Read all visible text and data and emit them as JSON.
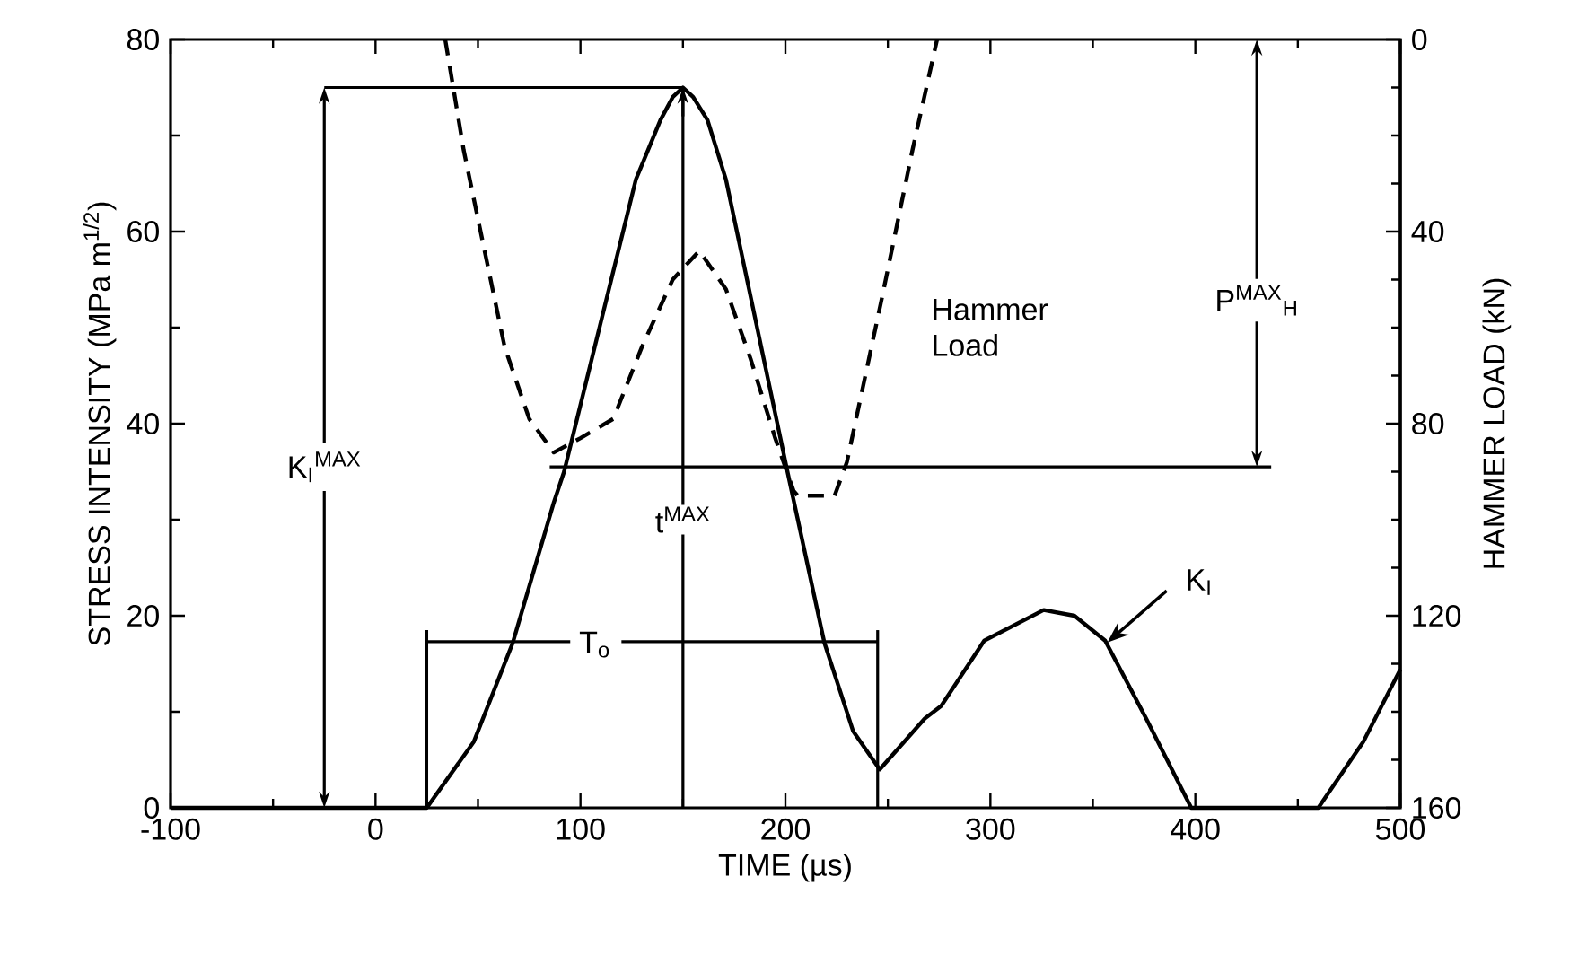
{
  "chart_data": {
    "type": "line",
    "xlabel": "TIME (µs)",
    "ylabel": "STRESS INTENSITY (MPa m$^{1/2}$)",
    "y2label": "HAMMER LOAD (kN)",
    "xlim": [
      -100,
      500
    ],
    "xticks": [
      -100,
      0,
      100,
      200,
      300,
      400,
      500
    ],
    "ylim": [
      0,
      80
    ],
    "yticks": [
      0,
      20,
      40,
      60,
      80
    ],
    "y2lim": [
      160,
      0
    ],
    "y2ticks": [
      0,
      40,
      80,
      120,
      160
    ],
    "grid": false,
    "marker": "none",
    "series": [
      {
        "color": "#000000",
        "line_style": "solid",
        "x": [
          -100,
          25,
          48,
          67,
          87,
          92,
          127,
          139,
          145,
          150,
          155,
          162,
          171,
          201,
          219,
          233,
          246,
          268,
          276,
          297,
          326,
          341,
          356,
          376,
          398,
          460,
          482,
          500
        ],
        "values": [
          0,
          0,
          6.9,
          17.2,
          31.8,
          35,
          65.4,
          71.6,
          74,
          75,
          74,
          71.6,
          65.4,
          35,
          17.2,
          8,
          4,
          9.3,
          10.6,
          17.4,
          20.6,
          20,
          17.4,
          9.3,
          0,
          0,
          6.9,
          14.4
        ]
      },
      {
        "color": "#000000",
        "line_style": "dashed",
        "axis": "y2",
        "x": [
          34,
          43,
          52,
          63,
          75,
          87,
          100,
          116,
          130,
          145,
          158,
          171,
          183,
          195,
          204,
          206,
          224,
          230,
          247,
          262,
          274
        ],
        "values": [
          0,
          23,
          41.5,
          64,
          79,
          86,
          83,
          79,
          64,
          50,
          44,
          52,
          66.5,
          83,
          94,
          95,
          95,
          88,
          54,
          23,
          0
        ]
      }
    ],
    "ref_lines": [
      {
        "axis": "x",
        "value": 150,
        "label": "t$^{MAX}$"
      },
      {
        "axis": "y2",
        "value": 89,
        "label": "P$^{MAX}$$_{H}$"
      }
    ],
    "annotations": [
      "K$_{I}$$^{MAX}$",
      "T$_{o}$",
      "Hammer Load",
      {
        "text": "K$_{I}$",
        "x": 357,
        "y": 17.2
      }
    ]
  }
}
